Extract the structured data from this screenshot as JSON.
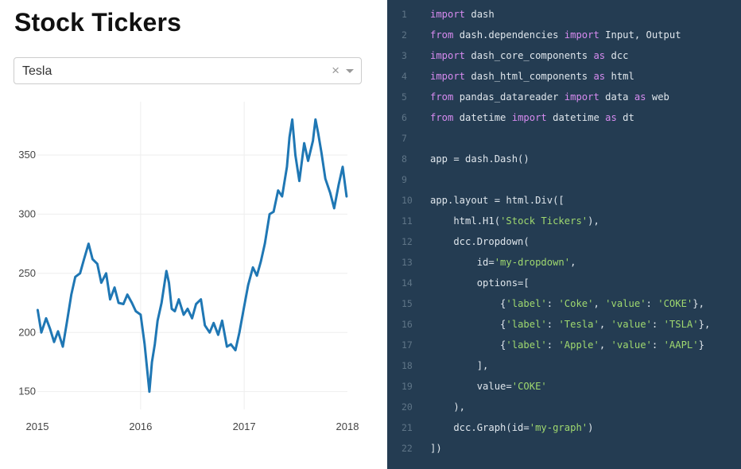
{
  "app": {
    "title": "Stock Tickers",
    "dropdown": {
      "selected": "Tesla",
      "clear_symbol": "×",
      "options": [
        "Coke",
        "Tesla",
        "Apple"
      ]
    }
  },
  "chart_data": {
    "type": "line",
    "title": "",
    "xlabel": "",
    "ylabel": "",
    "x_tick_labels": [
      "2015",
      "2016",
      "2017",
      "2018"
    ],
    "y_tick_labels": [
      "150",
      "200",
      "250",
      "300",
      "350"
    ],
    "xlim": [
      "2015-01-01",
      "2018-01-01"
    ],
    "ylim": [
      135,
      395
    ],
    "grid": true,
    "color": "#1f77b4",
    "series": [
      {
        "x": [
          "2015-01-02",
          "2015-01-15",
          "2015-02-01",
          "2015-02-15",
          "2015-03-01",
          "2015-03-15",
          "2015-04-01",
          "2015-04-15",
          "2015-05-01",
          "2015-05-15",
          "2015-06-01",
          "2015-06-15",
          "2015-07-01",
          "2015-07-15",
          "2015-08-01",
          "2015-08-15",
          "2015-09-01",
          "2015-09-15",
          "2015-10-01",
          "2015-10-15",
          "2015-11-01",
          "2015-11-15",
          "2015-12-01",
          "2015-12-15",
          "2016-01-01",
          "2016-01-15",
          "2016-02-01",
          "2016-02-10",
          "2016-02-20",
          "2016-03-01",
          "2016-03-15",
          "2016-04-01",
          "2016-04-10",
          "2016-04-20",
          "2016-05-01",
          "2016-05-15",
          "2016-06-01",
          "2016-06-15",
          "2016-07-01",
          "2016-07-15",
          "2016-08-01",
          "2016-08-15",
          "2016-09-01",
          "2016-09-15",
          "2016-10-01",
          "2016-10-15",
          "2016-11-01",
          "2016-11-15",
          "2016-12-01",
          "2016-12-15",
          "2017-01-01",
          "2017-01-15",
          "2017-02-01",
          "2017-02-15",
          "2017-03-01",
          "2017-03-15",
          "2017-04-01",
          "2017-04-15",
          "2017-05-01",
          "2017-05-15",
          "2017-06-01",
          "2017-06-10",
          "2017-06-20",
          "2017-07-01",
          "2017-07-15",
          "2017-08-01",
          "2017-08-15",
          "2017-09-01",
          "2017-09-10",
          "2017-09-20",
          "2017-10-01",
          "2017-10-15",
          "2017-11-01",
          "2017-11-15",
          "2017-12-01",
          "2017-12-15",
          "2017-12-29"
        ],
        "y": [
          219,
          200,
          212,
          203,
          192,
          201,
          188,
          208,
          232,
          247,
          250,
          262,
          275,
          262,
          258,
          242,
          250,
          228,
          238,
          225,
          224,
          232,
          225,
          218,
          215,
          190,
          150,
          175,
          190,
          210,
          225,
          252,
          242,
          220,
          218,
          228,
          215,
          220,
          212,
          224,
          228,
          206,
          200,
          208,
          198,
          210,
          188,
          190,
          185,
          200,
          222,
          240,
          255,
          248,
          260,
          275,
          300,
          302,
          320,
          315,
          340,
          365,
          380,
          350,
          328,
          360,
          345,
          362,
          380,
          368,
          352,
          330,
          318,
          305,
          325,
          340,
          315
        ]
      }
    ]
  },
  "code": {
    "lines": [
      [
        {
          "t": "import",
          "c": "kw"
        },
        {
          "t": " dash"
        }
      ],
      [
        {
          "t": "from",
          "c": "kw"
        },
        {
          "t": " dash.dependencies "
        },
        {
          "t": "import",
          "c": "kw"
        },
        {
          "t": " Input, Output"
        }
      ],
      [
        {
          "t": "import",
          "c": "kw"
        },
        {
          "t": " dash_core_components "
        },
        {
          "t": "as",
          "c": "kw"
        },
        {
          "t": " dcc"
        }
      ],
      [
        {
          "t": "import",
          "c": "kw"
        },
        {
          "t": " dash_html_components "
        },
        {
          "t": "as",
          "c": "kw"
        },
        {
          "t": " html"
        }
      ],
      [
        {
          "t": "from",
          "c": "kw"
        },
        {
          "t": " pandas_datareader "
        },
        {
          "t": "import",
          "c": "kw"
        },
        {
          "t": " data "
        },
        {
          "t": "as",
          "c": "kw"
        },
        {
          "t": " web"
        }
      ],
      [
        {
          "t": "from",
          "c": "kw"
        },
        {
          "t": " datetime "
        },
        {
          "t": "import",
          "c": "kw"
        },
        {
          "t": " datetime "
        },
        {
          "t": "as",
          "c": "kw"
        },
        {
          "t": " dt"
        }
      ],
      [],
      [
        {
          "t": "app = dash.Dash()"
        }
      ],
      [],
      [
        {
          "t": "app.layout = html.Div(["
        }
      ],
      [
        {
          "t": "    html.H1("
        },
        {
          "t": "'Stock Tickers'",
          "c": "str"
        },
        {
          "t": "),"
        }
      ],
      [
        {
          "t": "    dcc.Dropdown("
        }
      ],
      [
        {
          "t": "        id="
        },
        {
          "t": "'my-dropdown'",
          "c": "str"
        },
        {
          "t": ","
        }
      ],
      [
        {
          "t": "        options=["
        }
      ],
      [
        {
          "t": "            {"
        },
        {
          "t": "'label'",
          "c": "str"
        },
        {
          "t": ": "
        },
        {
          "t": "'Coke'",
          "c": "str"
        },
        {
          "t": ", "
        },
        {
          "t": "'value'",
          "c": "str"
        },
        {
          "t": ": "
        },
        {
          "t": "'COKE'",
          "c": "str"
        },
        {
          "t": "},"
        }
      ],
      [
        {
          "t": "            {"
        },
        {
          "t": "'label'",
          "c": "str"
        },
        {
          "t": ": "
        },
        {
          "t": "'Tesla'",
          "c": "str"
        },
        {
          "t": ", "
        },
        {
          "t": "'value'",
          "c": "str"
        },
        {
          "t": ": "
        },
        {
          "t": "'TSLA'",
          "c": "str"
        },
        {
          "t": "},"
        }
      ],
      [
        {
          "t": "            {"
        },
        {
          "t": "'label'",
          "c": "str"
        },
        {
          "t": ": "
        },
        {
          "t": "'Apple'",
          "c": "str"
        },
        {
          "t": ", "
        },
        {
          "t": "'value'",
          "c": "str"
        },
        {
          "t": ": "
        },
        {
          "t": "'AAPL'",
          "c": "str"
        },
        {
          "t": "}"
        }
      ],
      [
        {
          "t": "        ],"
        }
      ],
      [
        {
          "t": "        value="
        },
        {
          "t": "'COKE'",
          "c": "str"
        }
      ],
      [
        {
          "t": "    ),"
        }
      ],
      [
        {
          "t": "    dcc.Graph(id="
        },
        {
          "t": "'my-graph'",
          "c": "str"
        },
        {
          "t": ")"
        }
      ],
      [
        {
          "t": "])"
        }
      ]
    ]
  }
}
